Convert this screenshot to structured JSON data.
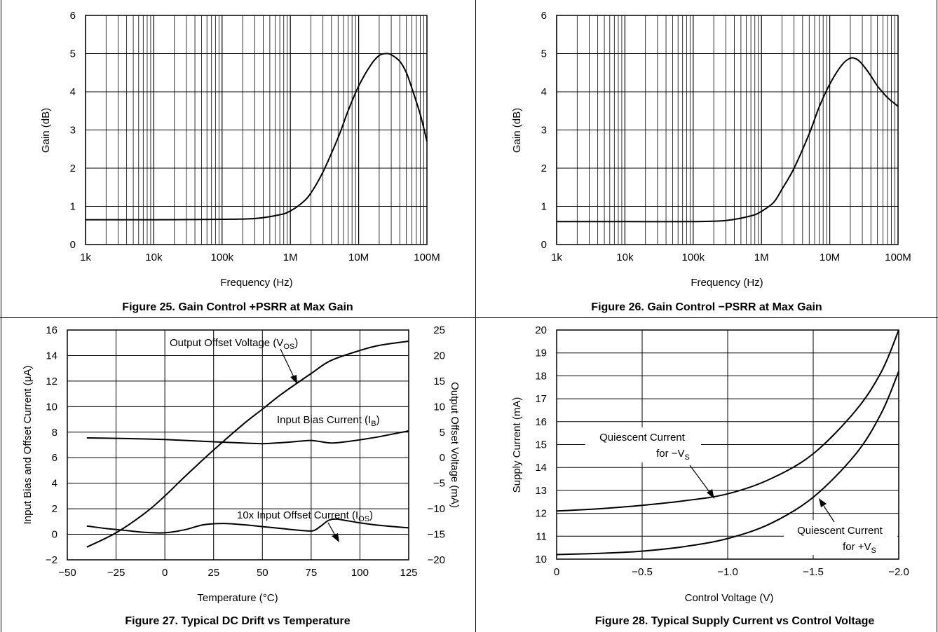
{
  "chart_data": [
    {
      "type": "line",
      "caption": "Figure 25. Gain Control +PSRR at Max Gain",
      "xlabel": "Frequency (Hz)",
      "ylabel": "Gain (dB)",
      "xscale": "log",
      "xlim": [
        1000,
        100000000
      ],
      "ylim": [
        0,
        6
      ],
      "xticks": [
        1000,
        10000,
        100000,
        1000000,
        10000000,
        100000000
      ],
      "xtick_labels": [
        "1k",
        "10k",
        "100k",
        "1M",
        "10M",
        "100M"
      ],
      "yticks": [
        0,
        1,
        2,
        3,
        4,
        5,
        6
      ],
      "ytick_labels": [
        "0",
        "1",
        "2",
        "3",
        "4",
        "5",
        "6"
      ],
      "grid": true,
      "series": [
        {
          "x": [
            1000,
            10000,
            100000,
            300000,
            700000,
            1000000,
            1500000,
            2000000,
            3000000,
            5000000,
            7000000,
            10000000,
            15000000,
            20000000,
            25000000,
            30000000,
            40000000,
            50000000,
            60000000,
            80000000,
            100000000
          ],
          "y": [
            0.65,
            0.65,
            0.66,
            0.68,
            0.78,
            0.88,
            1.1,
            1.35,
            1.9,
            2.8,
            3.5,
            4.15,
            4.7,
            4.95,
            5.0,
            4.97,
            4.8,
            4.5,
            4.1,
            3.4,
            2.7
          ]
        }
      ]
    },
    {
      "type": "line",
      "caption": "Figure 26. Gain Control −PSRR at Max Gain",
      "xlabel": "Frequency (Hz)",
      "ylabel": "Gain (dB)",
      "xscale": "log",
      "xlim": [
        1000,
        100000000
      ],
      "ylim": [
        0,
        6
      ],
      "xticks": [
        1000,
        10000,
        100000,
        1000000,
        10000000,
        100000000
      ],
      "xtick_labels": [
        "1k",
        "10k",
        "100k",
        "1M",
        "10M",
        "100M"
      ],
      "yticks": [
        0,
        1,
        2,
        3,
        4,
        5,
        6
      ],
      "ytick_labels": [
        "0",
        "1",
        "2",
        "3",
        "4",
        "5",
        "6"
      ],
      "grid": true,
      "series": [
        {
          "x": [
            1000,
            10000,
            100000,
            300000,
            700000,
            1000000,
            1500000,
            2000000,
            3000000,
            5000000,
            7000000,
            10000000,
            15000000,
            20000000,
            25000000,
            30000000,
            40000000,
            50000000,
            70000000,
            100000000
          ],
          "y": [
            0.6,
            0.6,
            0.6,
            0.63,
            0.75,
            0.87,
            1.1,
            1.45,
            2.0,
            2.9,
            3.6,
            4.2,
            4.7,
            4.88,
            4.85,
            4.72,
            4.42,
            4.15,
            3.85,
            3.62
          ]
        }
      ]
    },
    {
      "type": "line",
      "caption": "Figure 27. Typical DC Drift vs Temperature",
      "xlabel": "Temperature (°C)",
      "ylabel": "Input Bias and Offset Current (μA)",
      "y2label": "Output Offset Voltage (mA)",
      "xlim": [
        -50,
        125
      ],
      "ylim": [
        -2,
        16
      ],
      "y2lim": [
        -20,
        25
      ],
      "xticks": [
        -50,
        -25,
        0,
        25,
        50,
        75,
        100,
        125
      ],
      "xtick_labels": [
        "−50",
        "−25",
        "0",
        "25",
        "50",
        "75",
        "100",
        "125"
      ],
      "yticks": [
        -2,
        0,
        2,
        4,
        6,
        8,
        10,
        12,
        14,
        16
      ],
      "ytick_labels": [
        "−2",
        "0",
        "2",
        "4",
        "6",
        "8",
        "10",
        "12",
        "14",
        "16"
      ],
      "y2ticks": [
        -20,
        -15,
        -10,
        -5,
        0,
        5,
        10,
        15,
        20,
        25
      ],
      "y2tick_labels": [
        "−20",
        "−15",
        "−10",
        "−5",
        "0",
        "5",
        "10",
        "15",
        "20",
        "25"
      ],
      "grid": true,
      "series": [
        {
          "axis": "y2",
          "x": [
            -40,
            -25,
            -10,
            0,
            10,
            25,
            40,
            50,
            60,
            75,
            85,
            100,
            110,
            125
          ],
          "y": [
            -17.5,
            -14.7,
            -10.8,
            -7.5,
            -3.8,
            1.5,
            6.5,
            9.5,
            12.5,
            16.5,
            19,
            21,
            22,
            22.8
          ]
        },
        {
          "axis": "y",
          "x": [
            -40,
            -20,
            0,
            20,
            40,
            50,
            60,
            70,
            75,
            80,
            85,
            90,
            100,
            110,
            125
          ],
          "y": [
            7.55,
            7.5,
            7.42,
            7.28,
            7.15,
            7.1,
            7.18,
            7.3,
            7.35,
            7.25,
            7.15,
            7.2,
            7.4,
            7.65,
            8.1
          ]
        },
        {
          "axis": "y",
          "x": [
            -40,
            -30,
            -20,
            -10,
            0,
            10,
            20,
            30,
            40,
            50,
            60,
            70,
            76,
            80,
            84,
            88,
            92,
            100,
            110,
            125
          ],
          "y": [
            0.65,
            0.45,
            0.3,
            0.15,
            0.12,
            0.35,
            0.75,
            0.85,
            0.75,
            0.6,
            0.45,
            0.3,
            0.28,
            0.65,
            1.1,
            1.2,
            1.1,
            0.9,
            0.7,
            0.5
          ]
        }
      ],
      "annotations": [
        {
          "text": "Output Offset Voltage (V",
          "sub": "OS",
          "tail": ")"
        },
        {
          "text": "Input Bias Current (I",
          "sub": "B",
          "tail": ")"
        },
        {
          "text": "10x Input Offset Current (I",
          "sub": "OS",
          "tail": ")"
        }
      ]
    },
    {
      "type": "line",
      "caption": "Figure 28. Typical Supply Current vs Control Voltage",
      "xlabel": "Control Voltage (V)",
      "ylabel": "Supply Current (mA)",
      "xlim": [
        0,
        -2.0
      ],
      "ylim": [
        10,
        20
      ],
      "xticks": [
        0,
        -0.5,
        -1.0,
        -1.5,
        -2.0
      ],
      "xtick_labels": [
        "0",
        "−0.5",
        "−1.0",
        "−1.5",
        "−2.0"
      ],
      "yticks": [
        10,
        11,
        12,
        13,
        14,
        15,
        16,
        17,
        18,
        19,
        20
      ],
      "ytick_labels": [
        "10",
        "11",
        "12",
        "13",
        "14",
        "15",
        "16",
        "17",
        "18",
        "19",
        "20"
      ],
      "grid": true,
      "series": [
        {
          "x": [
            0,
            -0.25,
            -0.5,
            -0.75,
            -1.0,
            -1.25,
            -1.5,
            -1.75,
            -1.9,
            -2.0
          ],
          "y": [
            12.1,
            12.2,
            12.35,
            12.55,
            12.85,
            13.5,
            14.6,
            16.5,
            18.2,
            20.0
          ]
        },
        {
          "x": [
            0,
            -0.25,
            -0.5,
            -0.75,
            -1.0,
            -1.25,
            -1.5,
            -1.75,
            -1.9,
            -2.0
          ],
          "y": [
            10.2,
            10.25,
            10.35,
            10.55,
            10.9,
            11.55,
            12.7,
            14.6,
            16.4,
            18.2
          ]
        }
      ],
      "annotations": [
        {
          "line1": "Quiescent Current",
          "line2": "for −V",
          "sub": "S"
        },
        {
          "line1": "Quiescent Current",
          "line2": "for +V",
          "sub": "S"
        }
      ]
    }
  ]
}
